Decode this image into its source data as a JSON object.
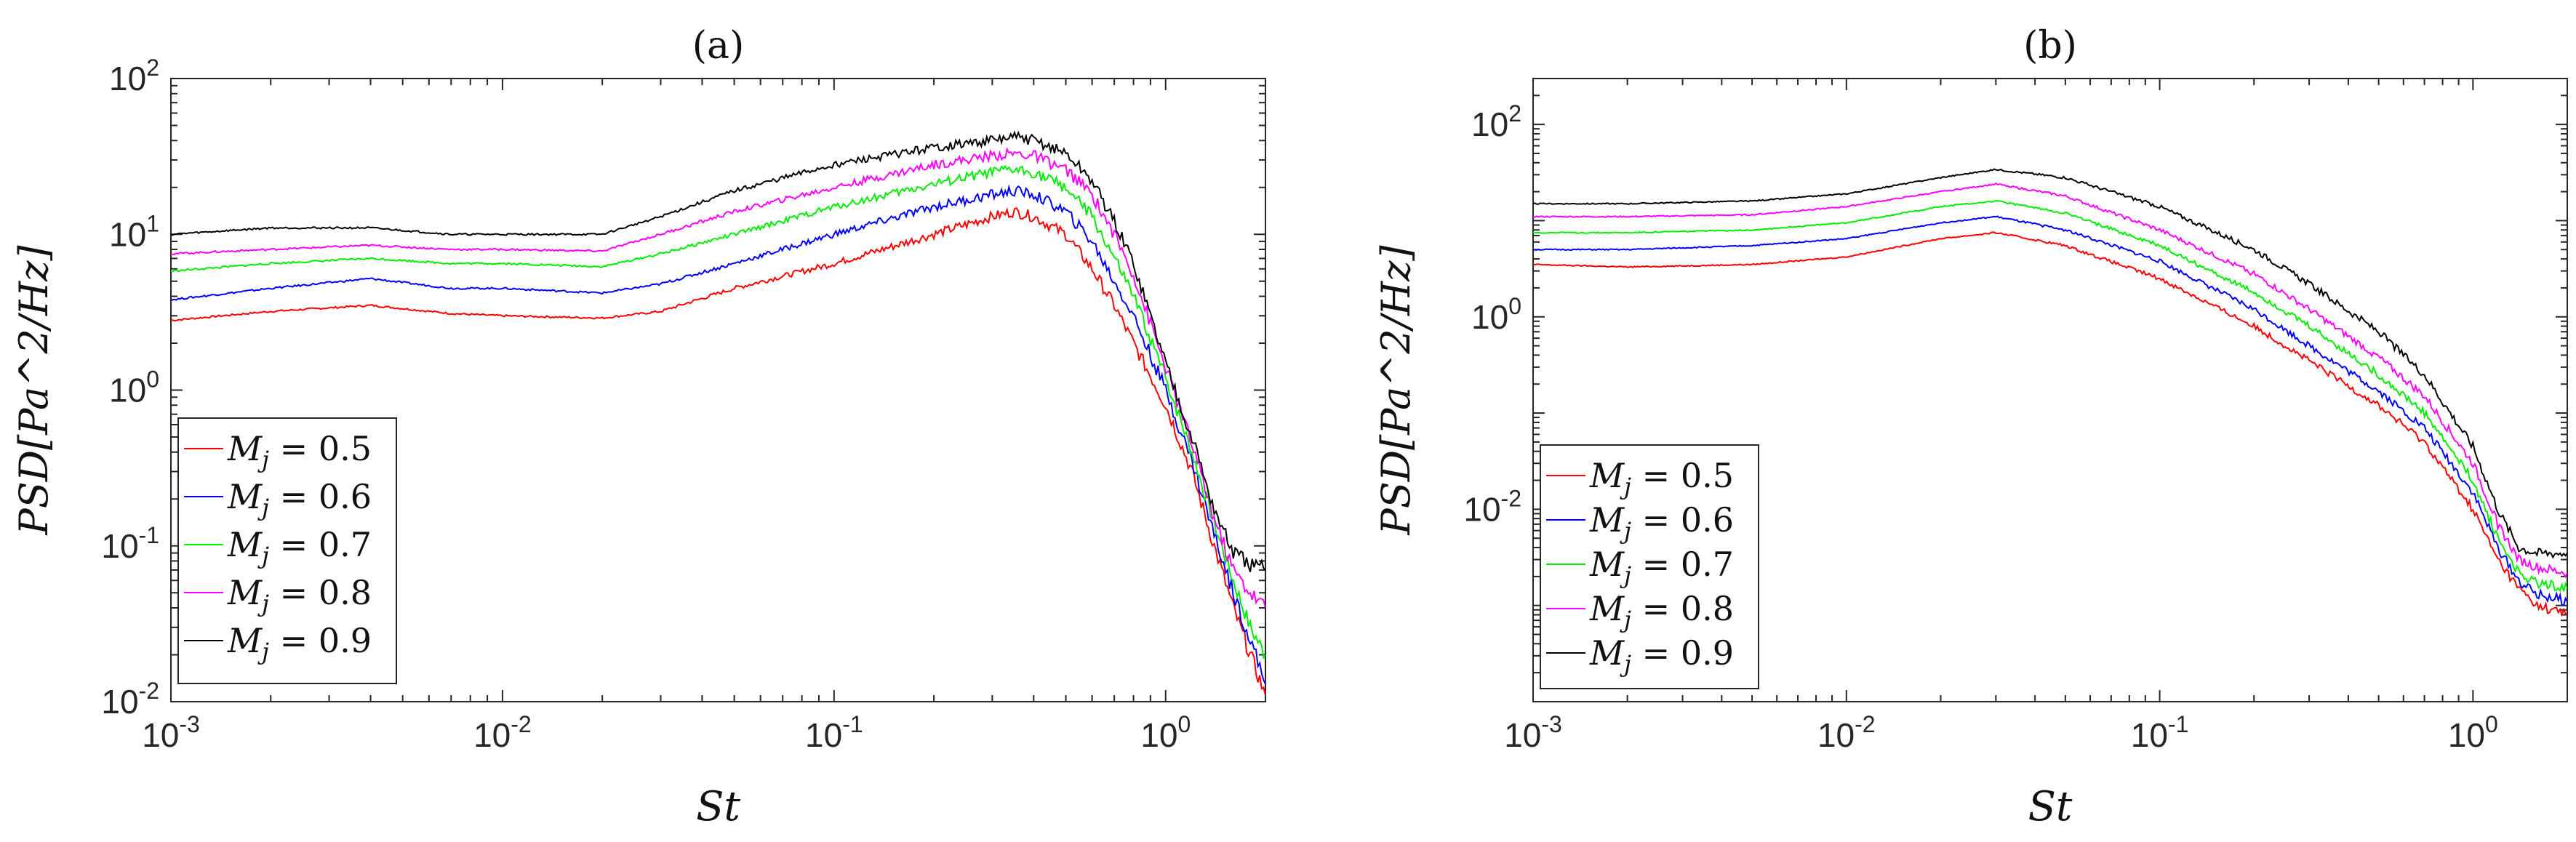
{
  "chart_data": [
    {
      "type": "line",
      "title": "(a)",
      "xlabel": "St",
      "ylabel": "PSD[Pa^2/Hz]",
      "xscale": "log",
      "yscale": "log",
      "xlim": [
        0.001,
        2.0
      ],
      "ylim": [
        0.01,
        100
      ],
      "xticks": [
        {
          "value": 0.001,
          "base": "10",
          "exp": "-3"
        },
        {
          "value": 0.01,
          "base": "10",
          "exp": "-2"
        },
        {
          "value": 0.1,
          "base": "10",
          "exp": "-1"
        },
        {
          "value": 1,
          "base": "10",
          "exp": "0"
        }
      ],
      "yticks": [
        {
          "value": 0.01,
          "base": "10",
          "exp": "-2"
        },
        {
          "value": 0.1,
          "base": "10",
          "exp": "-1"
        },
        {
          "value": 1,
          "base": "10",
          "exp": "0"
        },
        {
          "value": 10,
          "base": "10",
          "exp": "1"
        },
        {
          "value": 100,
          "base": "10",
          "exp": "2"
        }
      ],
      "legend_position": "bottom-left",
      "series": [
        {
          "name": "M_j = 0.5",
          "mach": "0.5",
          "color": "#ff0000",
          "x": [
            0.001,
            0.002,
            0.004,
            0.007,
            0.01,
            0.02,
            0.03,
            0.05,
            0.1,
            0.2,
            0.3,
            0.35,
            0.4,
            0.5,
            0.6,
            0.7,
            0.8,
            1.0,
            1.2,
            1.4,
            1.6,
            1.8,
            2.0
          ],
          "y": [
            2.8,
            3.2,
            3.5,
            3.1,
            3.0,
            2.9,
            3.2,
            4.5,
            6.5,
            10,
            13,
            14,
            13,
            10,
            6,
            3.5,
            2,
            0.8,
            0.3,
            0.1,
            0.04,
            0.02,
            0.011
          ]
        },
        {
          "name": "M_j = 0.6",
          "mach": "0.6",
          "color": "#0000ff",
          "x": [
            0.001,
            0.002,
            0.004,
            0.007,
            0.01,
            0.02,
            0.03,
            0.05,
            0.1,
            0.2,
            0.3,
            0.35,
            0.4,
            0.5,
            0.6,
            0.7,
            0.8,
            1.0,
            1.2,
            1.4,
            1.6,
            1.8,
            2.0
          ],
          "y": [
            3.8,
            4.5,
            5.2,
            4.5,
            4.5,
            4.2,
            4.8,
            6.5,
            10,
            15,
            18,
            19,
            18,
            14,
            9,
            5,
            3,
            1.0,
            0.35,
            0.12,
            0.05,
            0.025,
            0.013
          ]
        },
        {
          "name": "M_j = 0.7",
          "mach": "0.7",
          "color": "#00ee00",
          "x": [
            0.001,
            0.002,
            0.004,
            0.007,
            0.01,
            0.02,
            0.03,
            0.05,
            0.1,
            0.2,
            0.3,
            0.35,
            0.4,
            0.5,
            0.6,
            0.7,
            0.8,
            1.0,
            1.2,
            1.4,
            1.6,
            1.8,
            2.0
          ],
          "y": [
            5.8,
            6.5,
            7.0,
            6.5,
            6.5,
            6.2,
            7.5,
            10,
            15,
            21,
            25,
            26,
            25,
            20,
            13,
            7,
            4,
            1.2,
            0.4,
            0.14,
            0.06,
            0.03,
            0.02
          ]
        },
        {
          "name": "M_j = 0.8",
          "mach": "0.8",
          "color": "#ff00ff",
          "x": [
            0.001,
            0.002,
            0.004,
            0.007,
            0.01,
            0.02,
            0.03,
            0.05,
            0.1,
            0.2,
            0.3,
            0.35,
            0.4,
            0.5,
            0.6,
            0.7,
            0.8,
            1.0,
            1.2,
            1.4,
            1.6,
            1.8,
            2.0
          ],
          "y": [
            7.5,
            8.0,
            8.5,
            8.0,
            8.0,
            7.8,
            10,
            14,
            20,
            28,
            32,
            33,
            32,
            26,
            18,
            10,
            5.5,
            1.4,
            0.45,
            0.15,
            0.07,
            0.05,
            0.04
          ]
        },
        {
          "name": "M_j = 0.9",
          "mach": "0.9",
          "color": "#000000",
          "x": [
            0.001,
            0.002,
            0.004,
            0.007,
            0.01,
            0.02,
            0.03,
            0.05,
            0.1,
            0.2,
            0.3,
            0.35,
            0.4,
            0.5,
            0.6,
            0.7,
            0.8,
            1.0,
            1.2,
            1.4,
            1.6,
            1.8,
            2.0
          ],
          "y": [
            10,
            11,
            11,
            10,
            10,
            10,
            13,
            19,
            28,
            36,
            40,
            42,
            40,
            33,
            22,
            12,
            6.5,
            1.5,
            0.5,
            0.17,
            0.09,
            0.075,
            0.07
          ]
        }
      ]
    },
    {
      "type": "line",
      "title": "(b)",
      "xlabel": "St",
      "ylabel": "PSD[Pa^2/Hz]",
      "xscale": "log",
      "yscale": "log",
      "xlim": [
        0.001,
        2.0
      ],
      "ylim": [
        0.0001,
        300
      ],
      "xticks": [
        {
          "value": 0.001,
          "base": "10",
          "exp": "-3"
        },
        {
          "value": 0.01,
          "base": "10",
          "exp": "-2"
        },
        {
          "value": 0.1,
          "base": "10",
          "exp": "-1"
        },
        {
          "value": 1,
          "base": "10",
          "exp": "0"
        }
      ],
      "yticks": [
        {
          "value": 0.01,
          "base": "10",
          "exp": "-2"
        },
        {
          "value": 1,
          "base": "10",
          "exp": "0"
        },
        {
          "value": 100,
          "base": "10",
          "exp": "2"
        }
      ],
      "legend_position": "bottom-left",
      "series": [
        {
          "name": "M_j = 0.5",
          "mach": "0.5",
          "color": "#ff0000",
          "x": [
            0.001,
            0.002,
            0.005,
            0.01,
            0.02,
            0.03,
            0.05,
            0.1,
            0.2,
            0.3,
            0.5,
            0.7,
            1.0,
            1.2,
            1.4,
            1.6,
            1.8,
            2.0
          ],
          "y": [
            3.5,
            3.3,
            3.5,
            4.2,
            6.5,
            7.5,
            5.5,
            2.5,
            0.8,
            0.35,
            0.12,
            0.05,
            0.01,
            0.003,
            0.0015,
            0.001,
            0.0009,
            0.0008
          ]
        },
        {
          "name": "M_j = 0.6",
          "mach": "0.6",
          "color": "#0000ff",
          "x": [
            0.001,
            0.002,
            0.005,
            0.01,
            0.02,
            0.03,
            0.05,
            0.1,
            0.2,
            0.3,
            0.5,
            0.7,
            1.0,
            1.2,
            1.4,
            1.6,
            1.8,
            2.0
          ],
          "y": [
            5,
            5,
            5.5,
            6.5,
            9.5,
            11,
            8,
            3.8,
            1.2,
            0.5,
            0.17,
            0.07,
            0.015,
            0.004,
            0.0018,
            0.0013,
            0.0012,
            0.0011
          ]
        },
        {
          "name": "M_j = 0.7",
          "mach": "0.7",
          "color": "#00ee00",
          "x": [
            0.001,
            0.002,
            0.005,
            0.01,
            0.02,
            0.03,
            0.05,
            0.1,
            0.2,
            0.3,
            0.5,
            0.7,
            1.0,
            1.2,
            1.4,
            1.6,
            1.8,
            2.0
          ],
          "y": [
            7.5,
            7.5,
            8,
            9.5,
            14,
            16,
            12,
            5.5,
            1.8,
            0.8,
            0.25,
            0.1,
            0.02,
            0.005,
            0.0022,
            0.0017,
            0.0016,
            0.0015
          ]
        },
        {
          "name": "M_j = 0.8",
          "mach": "0.8",
          "color": "#ff00ff",
          "x": [
            0.001,
            0.002,
            0.005,
            0.01,
            0.02,
            0.03,
            0.05,
            0.1,
            0.2,
            0.3,
            0.5,
            0.7,
            1.0,
            1.2,
            1.4,
            1.6,
            1.8,
            2.0
          ],
          "y": [
            11,
            11,
            11.5,
            14,
            20,
            24,
            18,
            8,
            2.8,
            1.2,
            0.38,
            0.15,
            0.03,
            0.007,
            0.003,
            0.0025,
            0.0023,
            0.0022
          ]
        },
        {
          "name": "M_j = 0.9",
          "mach": "0.9",
          "color": "#000000",
          "x": [
            0.001,
            0.002,
            0.005,
            0.01,
            0.02,
            0.03,
            0.05,
            0.1,
            0.2,
            0.3,
            0.5,
            0.7,
            1.0,
            1.2,
            1.4,
            1.6,
            1.8,
            2.0
          ],
          "y": [
            15,
            15,
            16,
            19,
            28,
            34,
            28,
            14,
            5,
            2.2,
            0.7,
            0.25,
            0.045,
            0.01,
            0.004,
            0.0035,
            0.0035,
            0.0035
          ]
        }
      ]
    }
  ]
}
